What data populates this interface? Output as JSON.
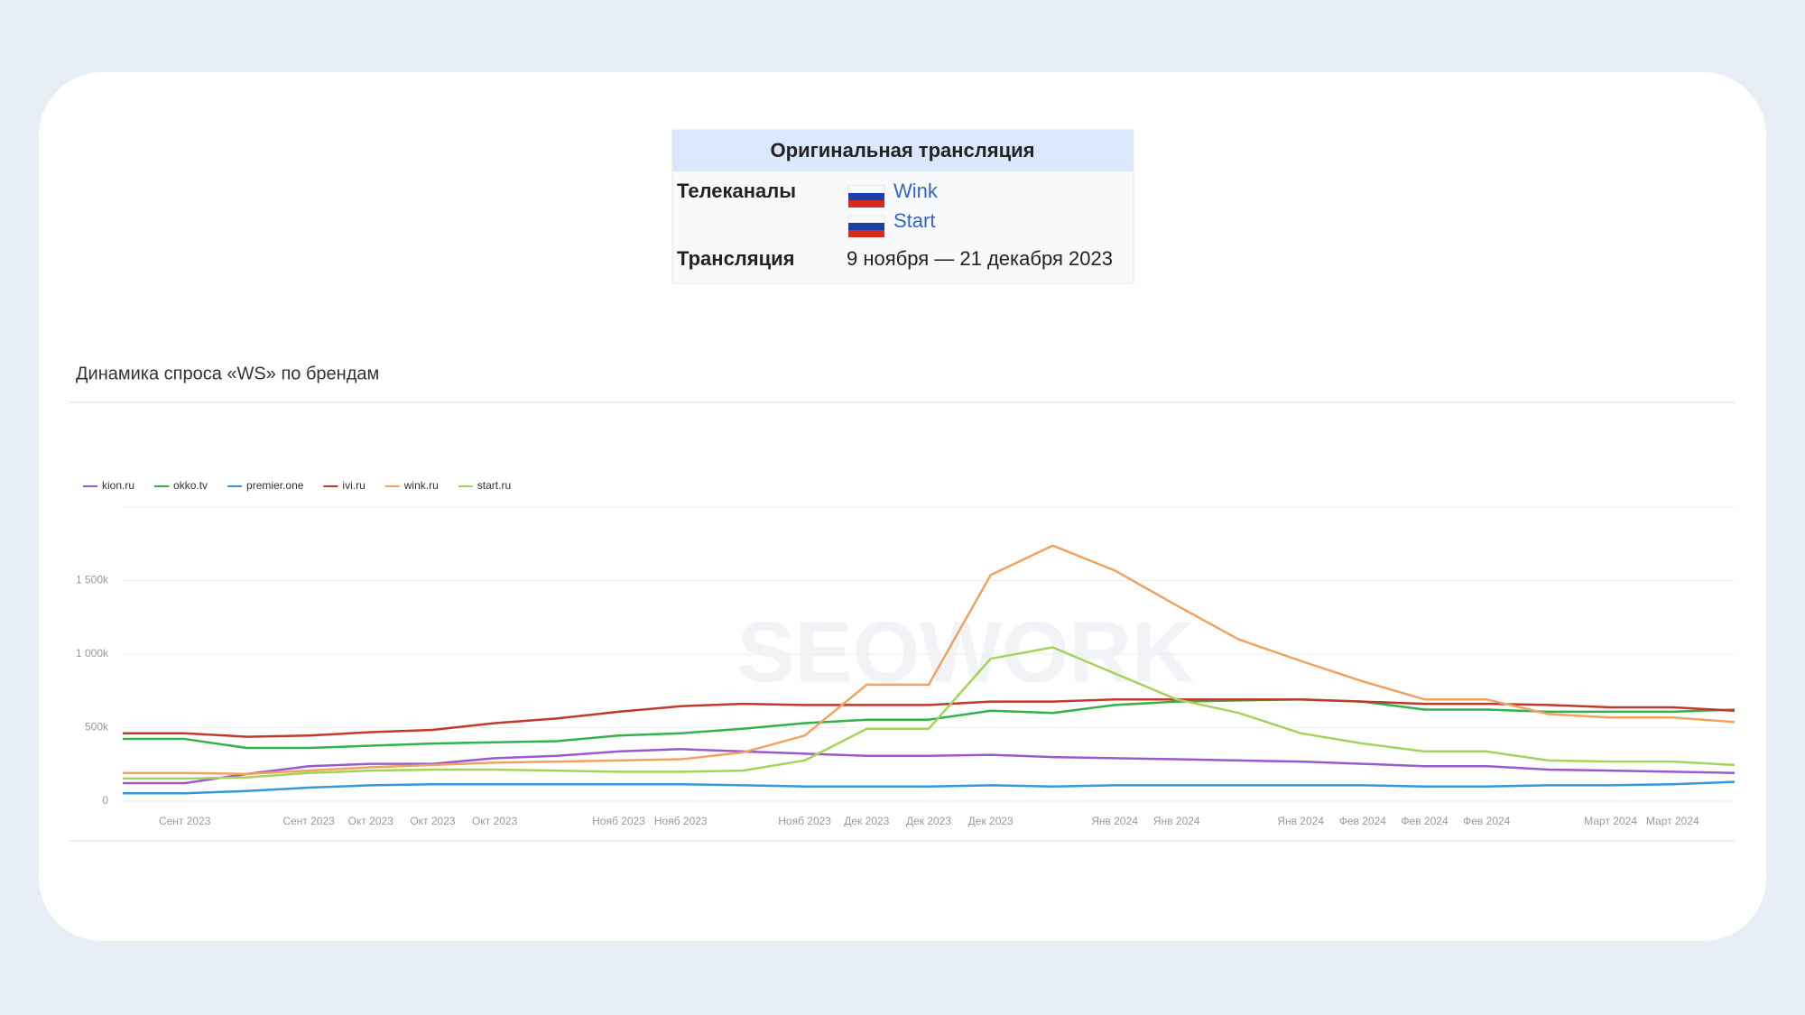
{
  "infobox": {
    "title": "Оригинальная трансляция",
    "rows": [
      {
        "label": "Телеканалы",
        "values": [
          "Wink",
          "Start"
        ]
      },
      {
        "label": "Трансляция",
        "values": [
          "9 ноября — 21 декабря 2023"
        ]
      }
    ]
  },
  "chart_data": {
    "type": "line",
    "title": "Динамика спроса «WS» по брендам",
    "watermark": "SEOWORK",
    "categories": [
      null,
      "Сент 2023",
      null,
      "Сент 2023",
      "Окт 2023",
      "Окт 2023",
      "Окт 2023",
      null,
      "Нояб 2023",
      "Нояб 2023",
      null,
      "Нояб 2023",
      "Дек 2023",
      "Дек 2023",
      "Дек 2023",
      null,
      "Янв 2024",
      "Янв 2024",
      null,
      "Янв 2024",
      "Фев 2024",
      "Фев 2024",
      "Фев 2024",
      null,
      "Март 2024",
      "Март 2024",
      null
    ],
    "ylim": [
      0,
      2000000
    ],
    "yticks": [
      0,
      {
        "value": 500000,
        "label": "500k"
      },
      {
        "value": 1000000,
        "label": "1 000k"
      },
      {
        "value": 1500000,
        "label": "1 500k"
      }
    ],
    "grid": true,
    "legend": "top-left",
    "series": [
      {
        "name": "kion.ru",
        "color": "#9b59d0",
        "values": [
          123000,
          123000,
          185000,
          238000,
          254000,
          254000,
          292000,
          308000,
          338000,
          354000,
          338000,
          323000,
          308000,
          308000,
          315000,
          300000,
          292000,
          285000,
          277000,
          269000,
          254000,
          238000,
          238000,
          215000,
          208000,
          200000,
          192000
        ]
      },
      {
        "name": "okko.tv",
        "color": "#2fb34a",
        "values": [
          423000,
          423000,
          362000,
          362000,
          377000,
          392000,
          400000,
          408000,
          446000,
          462000,
          492000,
          531000,
          554000,
          554000,
          615000,
          600000,
          654000,
          677000,
          685000,
          692000,
          677000,
          623000,
          623000,
          608000,
          608000,
          608000,
          623000
        ]
      },
      {
        "name": "premier.one",
        "color": "#3498db",
        "values": [
          54000,
          54000,
          69000,
          92000,
          108000,
          115000,
          115000,
          115000,
          115000,
          115000,
          108000,
          100000,
          100000,
          100000,
          108000,
          100000,
          108000,
          108000,
          108000,
          108000,
          108000,
          100000,
          100000,
          108000,
          108000,
          115000,
          131000
        ]
      },
      {
        "name": "ivi.ru",
        "color": "#c0392b",
        "values": [
          462000,
          462000,
          438000,
          446000,
          469000,
          485000,
          531000,
          562000,
          608000,
          646000,
          662000,
          654000,
          654000,
          654000,
          677000,
          677000,
          692000,
          692000,
          692000,
          692000,
          677000,
          662000,
          662000,
          654000,
          638000,
          638000,
          615000
        ]
      },
      {
        "name": "wink.ru",
        "color": "#f0a35e",
        "values": [
          192000,
          192000,
          185000,
          208000,
          231000,
          246000,
          262000,
          269000,
          277000,
          285000,
          331000,
          446000,
          792000,
          792000,
          1538000,
          1738000,
          1569000,
          1331000,
          1100000,
          954000,
          815000,
          692000,
          692000,
          592000,
          569000,
          569000,
          538000
        ]
      },
      {
        "name": "start.ru",
        "color": "#a5d35a",
        "values": [
          154000,
          154000,
          162000,
          192000,
          208000,
          215000,
          215000,
          208000,
          200000,
          200000,
          208000,
          277000,
          492000,
          492000,
          969000,
          1046000,
          869000,
          692000,
          600000,
          462000,
          392000,
          338000,
          338000,
          277000,
          269000,
          269000,
          246000
        ]
      }
    ]
  }
}
